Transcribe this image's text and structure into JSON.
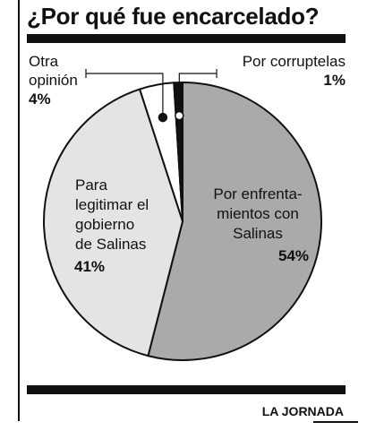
{
  "chart_data": {
    "type": "pie",
    "title": "¿Por qué fue encarcelado?",
    "slices": [
      {
        "label_lines": [
          "Por enfrenta-",
          "mientos con",
          "Salinas"
        ],
        "value": 54,
        "value_label": "54%",
        "color": "#aaaaaa"
      },
      {
        "label_lines": [
          "Para",
          "legitimar el",
          "gobierno",
          "de Salinas"
        ],
        "value": 41,
        "value_label": "41%",
        "color": "#e4e4e4"
      },
      {
        "label_lines": [
          "Otra",
          "opinión"
        ],
        "value": 4,
        "value_label": "4%",
        "color": "#ffffff"
      },
      {
        "label_lines": [
          "Por corruptelas"
        ],
        "value": 1,
        "value_label": "1%",
        "color": "#111111"
      }
    ]
  },
  "credit": "LA JORNADA"
}
